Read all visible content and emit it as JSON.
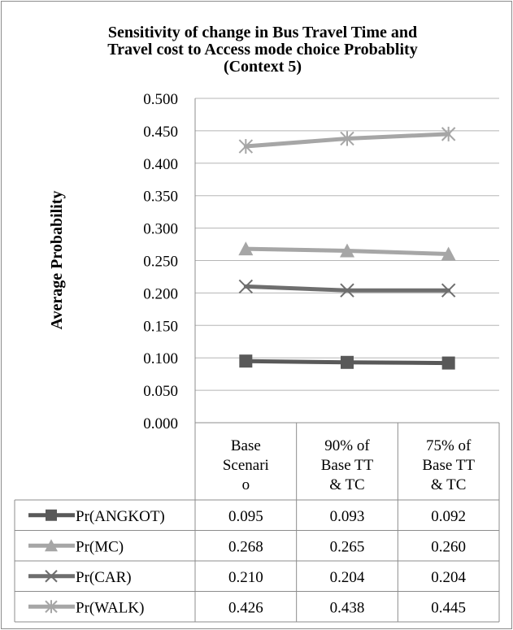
{
  "chart_data": {
    "type": "line",
    "title_lines": [
      "Sensitivity of change in Bus Travel Time and",
      "Travel cost to Access mode choice Probablity",
      "(Context 5)"
    ],
    "ylabel": "Average Probability",
    "ylim": [
      0,
      0.5
    ],
    "yticks": [
      "0.000",
      "0.050",
      "0.100",
      "0.150",
      "0.200",
      "0.250",
      "0.300",
      "0.350",
      "0.400",
      "0.450",
      "0.500"
    ],
    "categories": [
      [
        "Base",
        "Scenari",
        "o"
      ],
      [
        "90% of",
        "Base TT",
        "& TC"
      ],
      [
        "75% of",
        "Base TT",
        "& TC"
      ]
    ],
    "grid": true,
    "legend": "data-table",
    "series": [
      {
        "name": "Pr(ANGKOT)",
        "marker": "square",
        "color": "#595959",
        "values": [
          0.095,
          0.093,
          0.092
        ],
        "labels": [
          "0.095",
          "0.093",
          "0.092"
        ]
      },
      {
        "name": "Pr(MC)",
        "marker": "triangle",
        "color": "#a6a6a6",
        "values": [
          0.268,
          0.265,
          0.26
        ],
        "labels": [
          "0.268",
          "0.265",
          "0.260"
        ]
      },
      {
        "name": "Pr(CAR)",
        "marker": "x",
        "color": "#6e6e6e",
        "values": [
          0.21,
          0.204,
          0.204
        ],
        "labels": [
          "0.210",
          "0.204",
          "0.204"
        ]
      },
      {
        "name": "Pr(WALK)",
        "marker": "star",
        "color": "#a6a6a6",
        "values": [
          0.426,
          0.438,
          0.445
        ],
        "labels": [
          "0.426",
          "0.438",
          "0.445"
        ]
      }
    ]
  }
}
